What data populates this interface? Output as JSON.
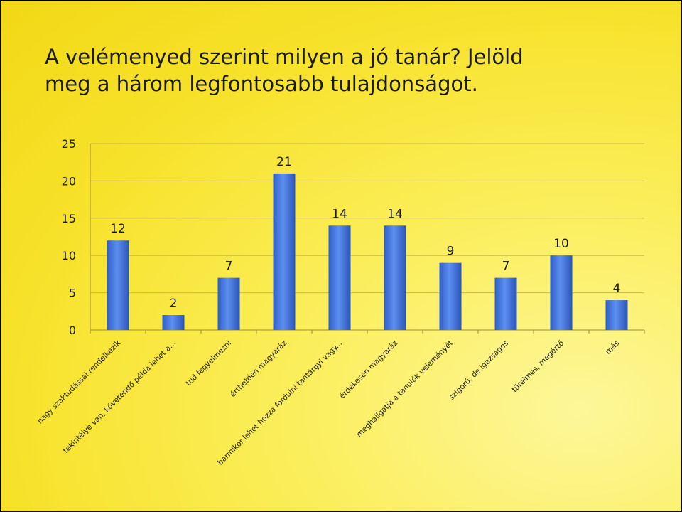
{
  "slide": {
    "title_line1": "A velémenyed szerint milyen a jó tanár? Jelöld",
    "title_line2": "meg a három legfontosabb tulajdonságot."
  },
  "chart_data": {
    "type": "bar",
    "categories": [
      "nagy szaktudással rendelkezik",
      "tekintélye van, követendő példa lehet a...",
      "tud fegyelmezni",
      "érthetően magyaráz",
      "bármikor lehet hozzá fordulni tantárgyi vagy...",
      "érdekesen magyaráz",
      "meghallgatja a tanulók véleményét",
      "szigorú, de igazságos",
      "türelmes, megértő",
      "más"
    ],
    "values": [
      12,
      2,
      7,
      21,
      14,
      14,
      9,
      7,
      10,
      4
    ],
    "ylim": [
      0,
      25
    ],
    "yticks": [
      0,
      5,
      10,
      15,
      20,
      25
    ],
    "grid": true,
    "data_labels": true,
    "bar_color": "#3f72d8",
    "xlabel": "",
    "ylabel": ""
  }
}
